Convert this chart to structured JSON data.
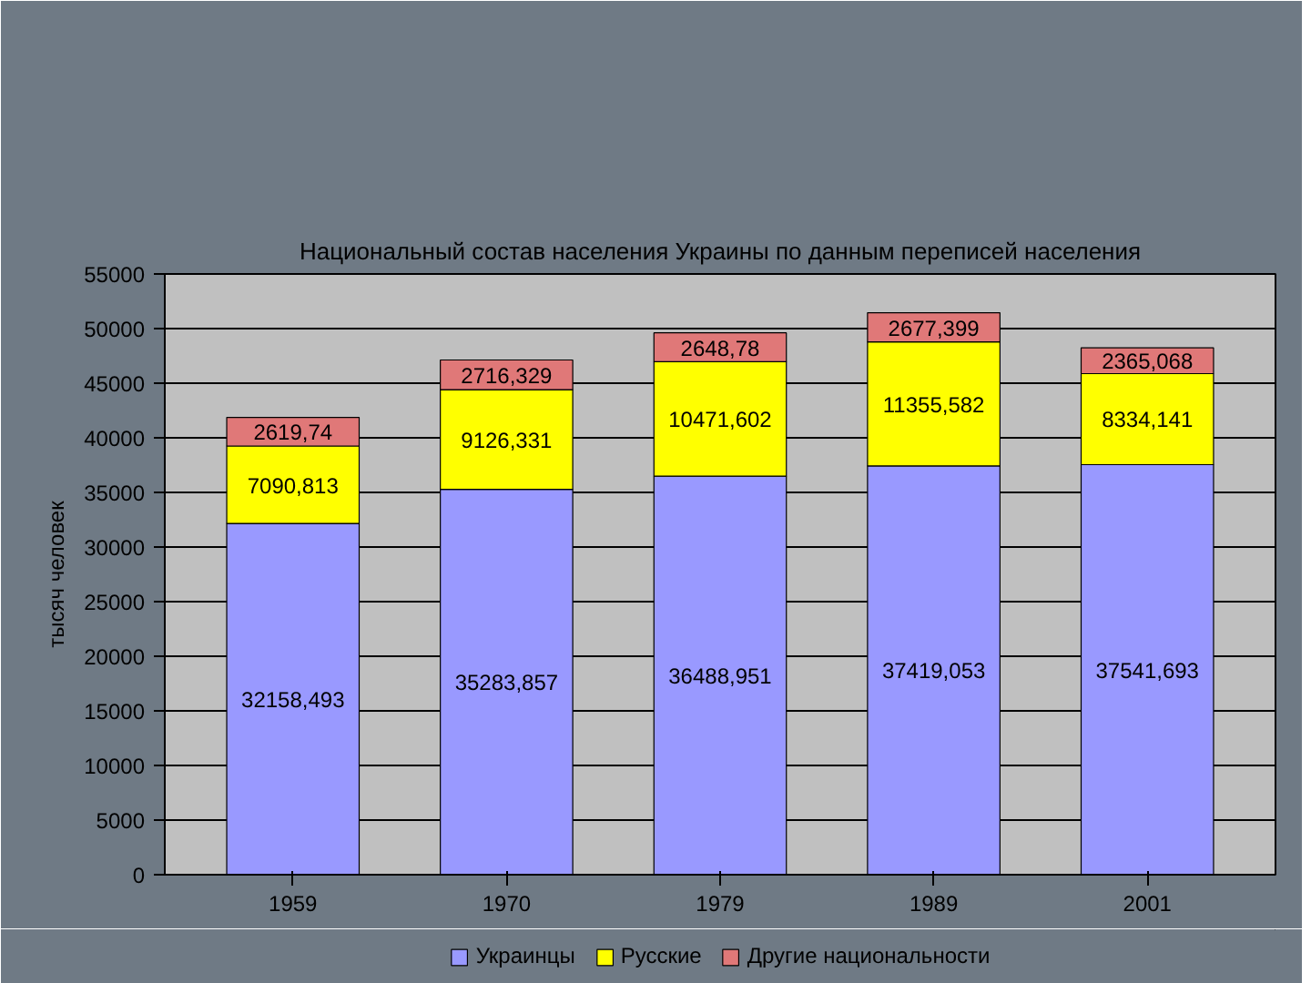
{
  "chart_data": {
    "type": "bar",
    "title": "Национальный состав населения Украины по данным переписей населения",
    "ylabel": "тысяч человек",
    "categories": [
      "1959",
      "1970",
      "1979",
      "1989",
      "2001"
    ],
    "series": [
      {
        "name": "Украинцы",
        "color": "#9999ff",
        "values": [
          32158.493,
          35283.857,
          36488.951,
          37419.053,
          37541.693
        ],
        "value_labels": [
          "32158,493",
          "35283,857",
          "36488,951",
          "37419,053",
          "37541,693"
        ]
      },
      {
        "name": "Русские",
        "color": "#ffff00",
        "values": [
          7090.813,
          9126.331,
          10471.602,
          11355.582,
          8334.141
        ],
        "value_labels": [
          "7090,813",
          "9126,331",
          "10471,602",
          "11355,582",
          "8334,141"
        ]
      },
      {
        "name": "Другие национальности",
        "color": "#e07878",
        "values": [
          2619.74,
          2716.329,
          2648.78,
          2677.399,
          2365.068
        ],
        "value_labels": [
          "2619,74",
          "2716,329",
          "2648,78",
          "2677,399",
          "2365,068"
        ]
      }
    ],
    "stacked": true,
    "ylim": [
      0,
      55000
    ],
    "yticks": [
      0,
      5000,
      10000,
      15000,
      20000,
      25000,
      30000,
      35000,
      40000,
      45000,
      50000,
      55000
    ],
    "grid": "y",
    "legend": "bottom"
  }
}
